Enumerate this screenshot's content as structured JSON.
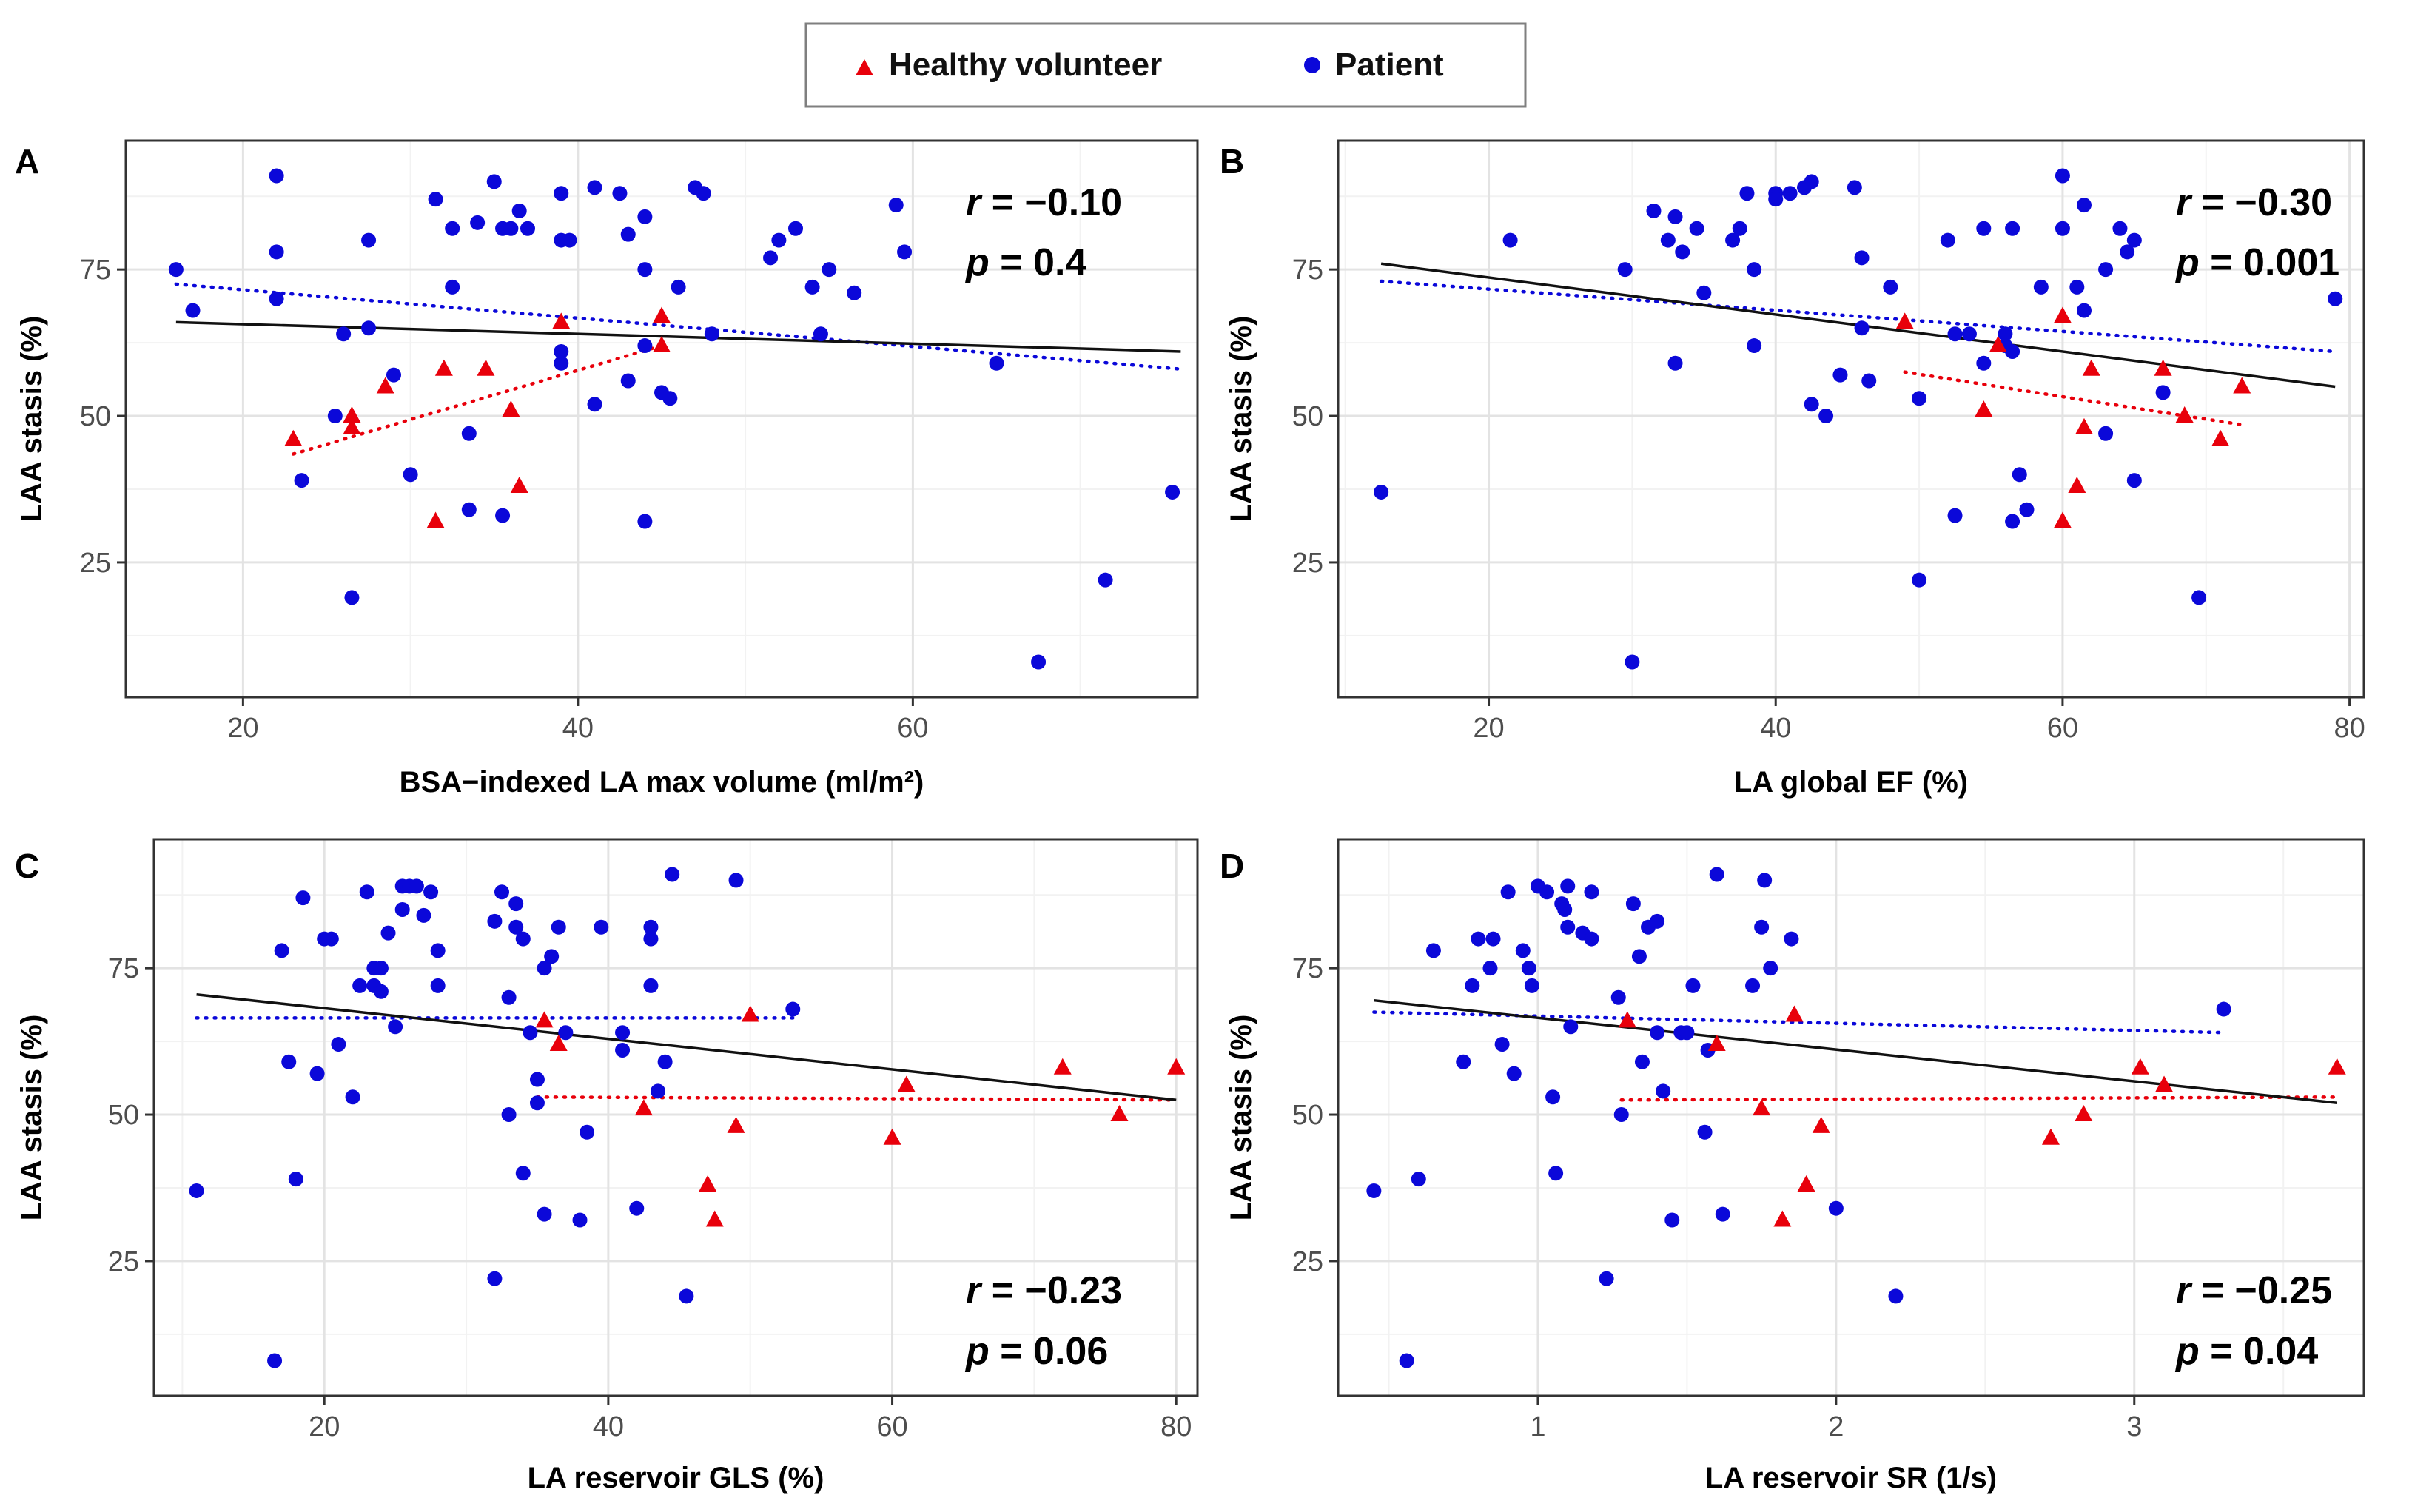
{
  "legend": {
    "healthy_label": "Healthy volunteer",
    "patient_label": "Patient",
    "healthy_color": "#e8000b",
    "patient_color": "#0b08d9"
  },
  "chart_data": [
    {
      "panel": "A",
      "type": "scatter",
      "xlabel": "BSA−indexed LA max volume (ml/m²)",
      "ylabel": "LAA stasis (%)",
      "xlim": [
        13,
        77
      ],
      "ylim": [
        2,
        97
      ],
      "xticks": [
        20,
        40,
        60
      ],
      "yticks": [
        25,
        50,
        75
      ],
      "stat_r": "−0.10",
      "stat_p": "0.4",
      "stats_position": "top-right",
      "patient": [
        [
          16,
          75
        ],
        [
          17,
          68
        ],
        [
          22,
          91
        ],
        [
          22,
          78
        ],
        [
          22,
          70
        ],
        [
          23.5,
          39
        ],
        [
          25.5,
          50
        ],
        [
          26,
          64
        ],
        [
          26.5,
          19
        ],
        [
          27.5,
          80
        ],
        [
          27.5,
          65
        ],
        [
          29,
          57
        ],
        [
          30,
          40
        ],
        [
          31.5,
          87
        ],
        [
          32.5,
          82
        ],
        [
          32.5,
          72
        ],
        [
          33.5,
          47
        ],
        [
          33.5,
          34
        ],
        [
          34,
          83
        ],
        [
          35,
          90
        ],
        [
          35.5,
          82
        ],
        [
          35.5,
          33
        ],
        [
          36,
          82
        ],
        [
          36.5,
          85
        ],
        [
          37,
          82
        ],
        [
          39,
          88
        ],
        [
          39,
          80
        ],
        [
          39.5,
          80
        ],
        [
          39,
          61
        ],
        [
          39,
          59
        ],
        [
          41,
          52
        ],
        [
          41,
          89
        ],
        [
          42.5,
          88
        ],
        [
          43,
          81
        ],
        [
          43,
          56
        ],
        [
          44,
          84
        ],
        [
          44,
          75
        ],
        [
          44,
          62
        ],
        [
          44,
          32
        ],
        [
          45,
          54
        ],
        [
          45.5,
          53
        ],
        [
          46,
          72
        ],
        [
          47,
          89
        ],
        [
          47.5,
          88
        ],
        [
          48,
          64
        ],
        [
          51.5,
          77
        ],
        [
          52,
          80
        ],
        [
          53,
          82
        ],
        [
          54,
          72
        ],
        [
          54.5,
          64
        ],
        [
          55,
          75
        ],
        [
          56.5,
          71
        ],
        [
          59,
          86
        ],
        [
          59.5,
          78
        ],
        [
          65,
          59
        ],
        [
          67.5,
          8
        ],
        [
          71.5,
          22
        ],
        [
          75.5,
          37
        ]
      ],
      "healthy": [
        [
          23,
          46
        ],
        [
          26.5,
          50
        ],
        [
          26.5,
          48
        ],
        [
          28.5,
          55
        ],
        [
          31.5,
          32
        ],
        [
          32,
          58
        ],
        [
          34.5,
          58
        ],
        [
          36,
          51
        ],
        [
          36.5,
          38
        ],
        [
          39,
          66
        ],
        [
          45,
          67
        ],
        [
          45,
          62
        ]
      ],
      "fit_all": [
        16,
        66,
        76,
        61
      ],
      "fit_patient": [
        16,
        72.5,
        76,
        58
      ],
      "fit_healthy": [
        23,
        43.5,
        45,
        62
      ]
    },
    {
      "panel": "B",
      "type": "scatter",
      "xlabel": "LA global EF (%)",
      "ylabel": "LAA stasis (%)",
      "xlim": [
        9.5,
        81
      ],
      "ylim": [
        2,
        97
      ],
      "xticks": [
        20,
        40,
        60,
        80
      ],
      "yticks": [
        25,
        50,
        75
      ],
      "stat_r": "−0.30",
      "stat_p": "0.001",
      "stats_position": "top-right",
      "patient": [
        [
          12.5,
          37
        ],
        [
          21.5,
          80
        ],
        [
          29.5,
          75
        ],
        [
          30,
          8
        ],
        [
          31.5,
          85
        ],
        [
          32.5,
          80
        ],
        [
          33,
          84
        ],
        [
          33,
          59
        ],
        [
          33.5,
          78
        ],
        [
          34.5,
          82
        ],
        [
          35,
          71
        ],
        [
          37,
          80
        ],
        [
          37.5,
          82
        ],
        [
          38,
          88
        ],
        [
          38.5,
          75
        ],
        [
          38.5,
          62
        ],
        [
          40,
          88
        ],
        [
          40,
          87
        ],
        [
          41,
          88
        ],
        [
          42,
          89
        ],
        [
          42.5,
          90
        ],
        [
          42.5,
          52
        ],
        [
          43.5,
          50
        ],
        [
          44.5,
          57
        ],
        [
          45.5,
          89
        ],
        [
          46,
          77
        ],
        [
          46,
          65
        ],
        [
          46.5,
          56
        ],
        [
          48,
          72
        ],
        [
          50,
          22
        ],
        [
          50,
          53
        ],
        [
          52,
          80
        ],
        [
          52.5,
          64
        ],
        [
          52.5,
          33
        ],
        [
          53.5,
          64
        ],
        [
          54.5,
          82
        ],
        [
          54.5,
          59
        ],
        [
          56,
          62
        ],
        [
          56.5,
          82
        ],
        [
          56.5,
          61
        ],
        [
          56,
          64
        ],
        [
          56.5,
          32
        ],
        [
          57,
          40
        ],
        [
          57.5,
          34
        ],
        [
          58.5,
          72
        ],
        [
          60,
          91
        ],
        [
          60,
          82
        ],
        [
          61,
          72
        ],
        [
          61.5,
          68
        ],
        [
          61.5,
          86
        ],
        [
          63,
          75
        ],
        [
          63,
          47
        ],
        [
          64,
          82
        ],
        [
          64.5,
          78
        ],
        [
          65,
          80
        ],
        [
          65,
          39
        ],
        [
          67,
          54
        ],
        [
          69.5,
          19
        ],
        [
          79,
          70
        ]
      ],
      "healthy": [
        [
          49,
          66
        ],
        [
          54.5,
          51
        ],
        [
          55.5,
          62
        ],
        [
          60,
          67
        ],
        [
          60,
          32
        ],
        [
          61,
          38
        ],
        [
          61.5,
          48
        ],
        [
          62,
          58
        ],
        [
          67,
          58
        ],
        [
          68.5,
          50
        ],
        [
          71,
          46
        ],
        [
          72.5,
          55
        ]
      ],
      "fit_all": [
        12.5,
        76,
        79,
        55
      ],
      "fit_patient": [
        12.5,
        73,
        79,
        61
      ],
      "fit_healthy": [
        49,
        57.5,
        72.5,
        48.5
      ]
    },
    {
      "panel": "C",
      "type": "scatter",
      "xlabel": "LA reservoir GLS (%)",
      "ylabel": "LAA stasis (%)",
      "xlim": [
        8,
        81.5
      ],
      "ylim": [
        2,
        97
      ],
      "xticks": [
        20,
        40,
        60,
        80
      ],
      "yticks": [
        25,
        50,
        75
      ],
      "stat_r": "−0.23",
      "stat_p": "0.06",
      "stats_position": "bottom-right",
      "patient": [
        [
          11,
          37
        ],
        [
          16.5,
          8
        ],
        [
          17,
          78
        ],
        [
          17.5,
          59
        ],
        [
          18,
          39
        ],
        [
          18.5,
          87
        ],
        [
          19.5,
          57
        ],
        [
          20,
          80
        ],
        [
          20.5,
          80
        ],
        [
          21,
          62
        ],
        [
          22,
          53
        ],
        [
          22.5,
          72
        ],
        [
          23,
          88
        ],
        [
          23.5,
          75
        ],
        [
          23.5,
          72
        ],
        [
          24,
          71
        ],
        [
          24,
          75
        ],
        [
          24.5,
          81
        ],
        [
          25,
          65
        ],
        [
          25.5,
          85
        ],
        [
          25.5,
          89
        ],
        [
          26,
          89
        ],
        [
          26.5,
          89
        ],
        [
          27,
          84
        ],
        [
          27.5,
          88
        ],
        [
          28,
          78
        ],
        [
          28,
          72
        ],
        [
          32,
          22
        ],
        [
          32,
          83
        ],
        [
          32.5,
          88
        ],
        [
          33,
          50
        ],
        [
          33,
          70
        ],
        [
          33.5,
          86
        ],
        [
          33.5,
          82
        ],
        [
          34,
          40
        ],
        [
          34,
          80
        ],
        [
          34.5,
          64
        ],
        [
          35,
          52
        ],
        [
          35,
          56
        ],
        [
          35.5,
          33
        ],
        [
          35.5,
          75
        ],
        [
          36,
          77
        ],
        [
          36.5,
          82
        ],
        [
          37,
          64
        ],
        [
          38,
          32
        ],
        [
          38.5,
          47
        ],
        [
          39.5,
          82
        ],
        [
          41,
          61
        ],
        [
          41,
          64
        ],
        [
          42,
          34
        ],
        [
          43,
          72
        ],
        [
          43,
          80
        ],
        [
          43,
          82
        ],
        [
          43.5,
          54
        ],
        [
          44,
          59
        ],
        [
          44.5,
          91
        ],
        [
          45.5,
          19
        ],
        [
          49,
          90
        ],
        [
          53,
          68
        ]
      ],
      "healthy": [
        [
          35.5,
          66
        ],
        [
          36.5,
          62
        ],
        [
          42.5,
          51
        ],
        [
          47,
          38
        ],
        [
          47.5,
          32
        ],
        [
          49,
          48
        ],
        [
          50,
          67
        ],
        [
          60,
          46
        ],
        [
          61,
          55
        ],
        [
          72,
          58
        ],
        [
          76,
          50
        ],
        [
          80,
          58
        ]
      ],
      "fit_all": [
        11,
        70.5,
        80,
        52.5
      ],
      "fit_patient": [
        11,
        66.5,
        53,
        66.5
      ],
      "fit_healthy": [
        35,
        53,
        80,
        52.5
      ]
    },
    {
      "panel": "D",
      "type": "scatter",
      "xlabel": "LA reservoir SR (1/s)",
      "ylabel": "LAA stasis (%)",
      "xlim": [
        0.33,
        3.77
      ],
      "ylim": [
        2,
        97
      ],
      "xticks": [
        1,
        2,
        3
      ],
      "yticks": [
        25,
        50,
        75
      ],
      "stat_r": "−0.25",
      "stat_p": "0.04",
      "stats_position": "bottom-right",
      "patient": [
        [
          0.45,
          37
        ],
        [
          0.56,
          8
        ],
        [
          0.6,
          39
        ],
        [
          0.65,
          78
        ],
        [
          0.75,
          59
        ],
        [
          0.78,
          72
        ],
        [
          0.8,
          80
        ],
        [
          0.84,
          75
        ],
        [
          0.85,
          80
        ],
        [
          0.88,
          62
        ],
        [
          0.9,
          88
        ],
        [
          0.92,
          57
        ],
        [
          0.95,
          78
        ],
        [
          0.97,
          75
        ],
        [
          0.98,
          72
        ],
        [
          1.0,
          89
        ],
        [
          1.03,
          88
        ],
        [
          1.05,
          53
        ],
        [
          1.06,
          40
        ],
        [
          1.08,
          86
        ],
        [
          1.09,
          85
        ],
        [
          1.1,
          89
        ],
        [
          1.1,
          82
        ],
        [
          1.11,
          65
        ],
        [
          1.15,
          81
        ],
        [
          1.18,
          80
        ],
        [
          1.18,
          88
        ],
        [
          1.23,
          22
        ],
        [
          1.27,
          70
        ],
        [
          1.28,
          50
        ],
        [
          1.32,
          86
        ],
        [
          1.34,
          77
        ],
        [
          1.35,
          59
        ],
        [
          1.37,
          82
        ],
        [
          1.4,
          83
        ],
        [
          1.4,
          64
        ],
        [
          1.42,
          54
        ],
        [
          1.45,
          32
        ],
        [
          1.48,
          64
        ],
        [
          1.5,
          64
        ],
        [
          1.52,
          72
        ],
        [
          1.56,
          47
        ],
        [
          1.57,
          61
        ],
        [
          1.6,
          91
        ],
        [
          1.62,
          33
        ],
        [
          1.72,
          72
        ],
        [
          1.75,
          82
        ],
        [
          1.76,
          90
        ],
        [
          1.78,
          75
        ],
        [
          1.85,
          80
        ],
        [
          2.0,
          34
        ],
        [
          2.2,
          19
        ],
        [
          3.3,
          68
        ]
      ],
      "healthy": [
        [
          1.3,
          66
        ],
        [
          1.6,
          62
        ],
        [
          1.75,
          51
        ],
        [
          1.82,
          32
        ],
        [
          1.86,
          67
        ],
        [
          1.9,
          38
        ],
        [
          1.95,
          48
        ],
        [
          2.72,
          46
        ],
        [
          2.83,
          50
        ],
        [
          3.02,
          58
        ],
        [
          3.1,
          55
        ],
        [
          3.68,
          58
        ]
      ],
      "fit_all": [
        0.45,
        69.5,
        3.68,
        52
      ],
      "fit_patient": [
        0.45,
        67.5,
        3.3,
        64
      ],
      "fit_healthy": [
        1.28,
        52.5,
        3.68,
        53
      ]
    }
  ]
}
